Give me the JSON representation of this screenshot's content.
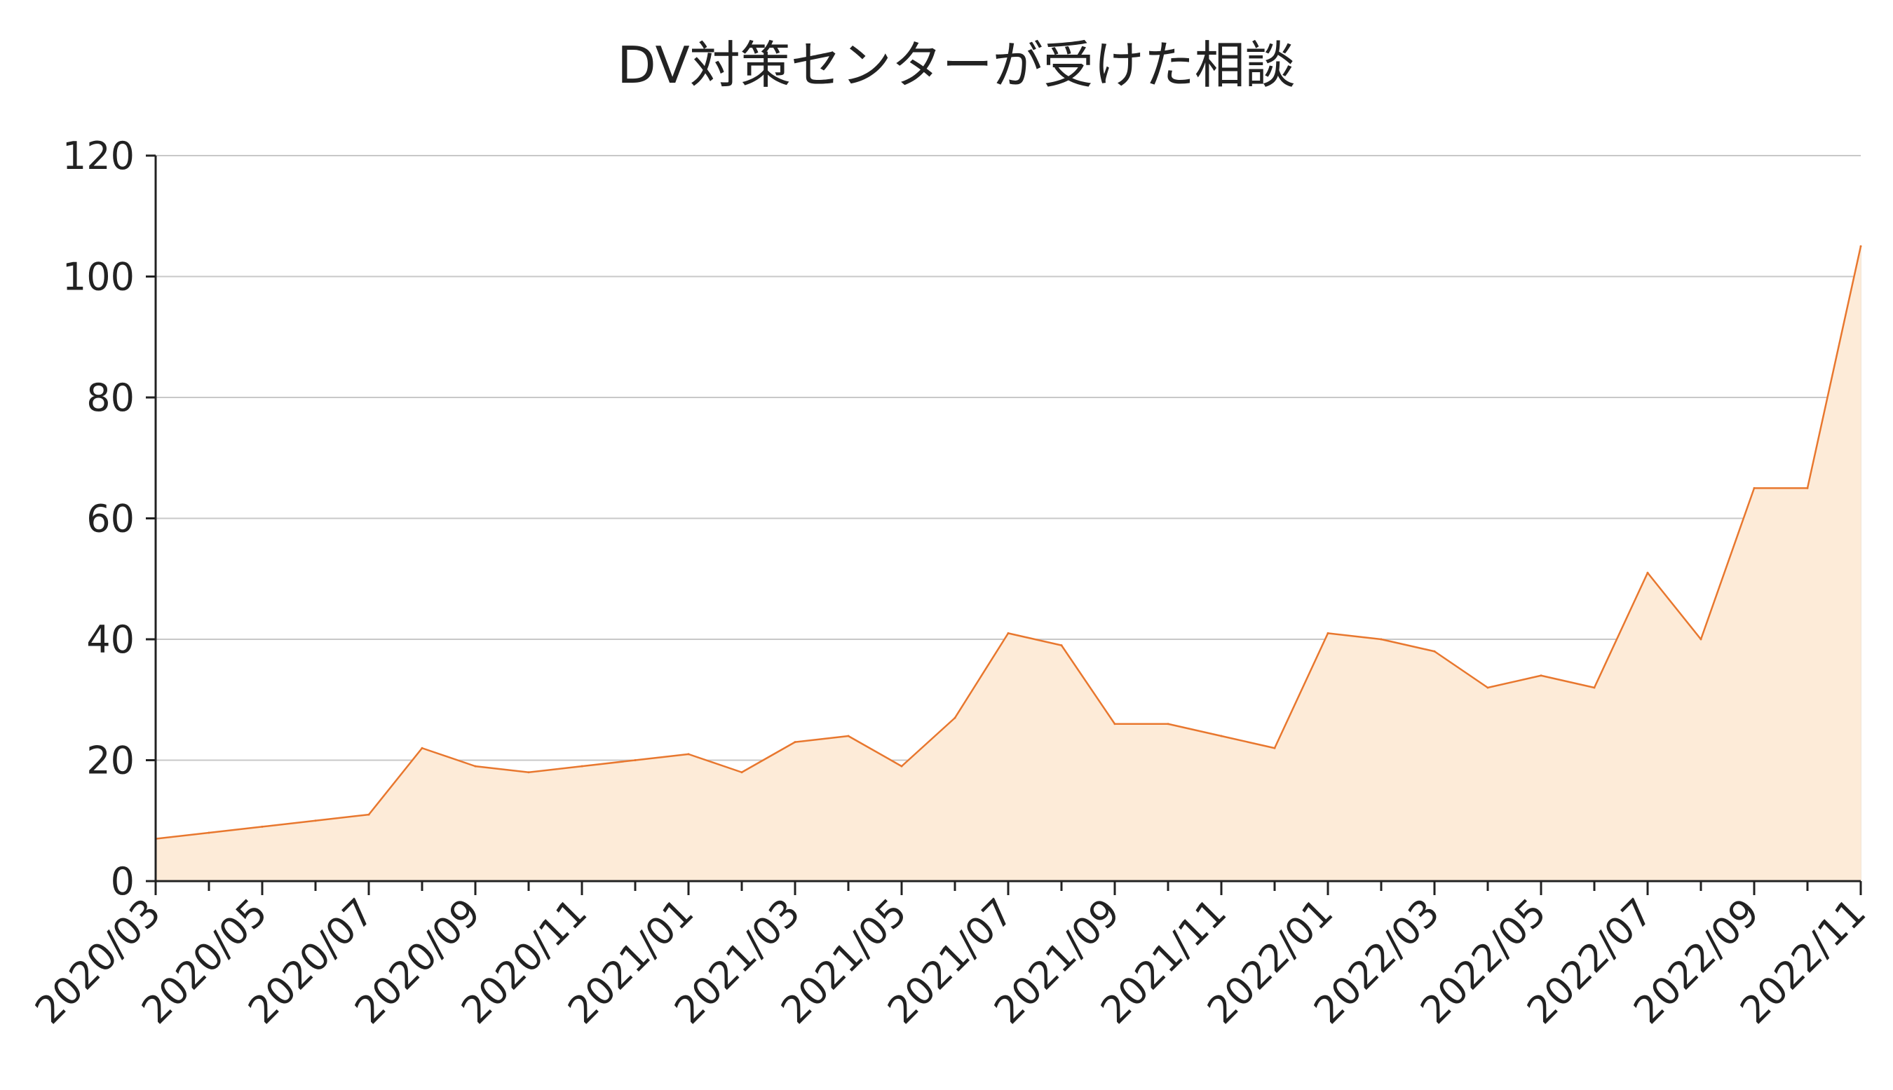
{
  "chart_data": {
    "type": "area",
    "title": "DV対策センターが受けた相談",
    "xlabel": "",
    "ylabel": "",
    "ylim": [
      0,
      120
    ],
    "yticks": [
      "0",
      "20",
      "40",
      "60",
      "80",
      "100",
      "120"
    ],
    "x": [
      "2020/03",
      "2020/04",
      "2020/05",
      "2020/06",
      "2020/07",
      "2020/08",
      "2020/09",
      "2020/10",
      "2020/11",
      "2020/12",
      "2021/01",
      "2021/02",
      "2021/03",
      "2021/04",
      "2021/05",
      "2021/06",
      "2021/07",
      "2021/08",
      "2021/09",
      "2021/10",
      "2021/11",
      "2021/12",
      "2022/01",
      "2022/02",
      "2022/03",
      "2022/04",
      "2022/05",
      "2022/06",
      "2022/07",
      "2022/08",
      "2022/09",
      "2022/10",
      "2022/11"
    ],
    "xtick_labels": [
      "2020/03",
      "2020/05",
      "2020/07",
      "2020/09",
      "2020/11",
      "2021/01",
      "2021/03",
      "2021/05",
      "2021/07",
      "2021/09",
      "2021/11",
      "2022/01",
      "2022/03",
      "2022/05",
      "2022/07",
      "2022/09",
      "2022/11"
    ],
    "series": [
      {
        "values": [
          7,
          8,
          9,
          10,
          11,
          22,
          19,
          18,
          19,
          20,
          21,
          18,
          23,
          24,
          19,
          27,
          41,
          39,
          26,
          26,
          24,
          22,
          41,
          40,
          38,
          32,
          34,
          32,
          51,
          40,
          65,
          65,
          105
        ]
      }
    ],
    "grid": true,
    "colors": {
      "line": "#E8772E",
      "fill": "#FDEBD8",
      "grid": "#C8C8C8",
      "axis": "#222222",
      "vertical_grid": "#F0E4D6"
    }
  }
}
